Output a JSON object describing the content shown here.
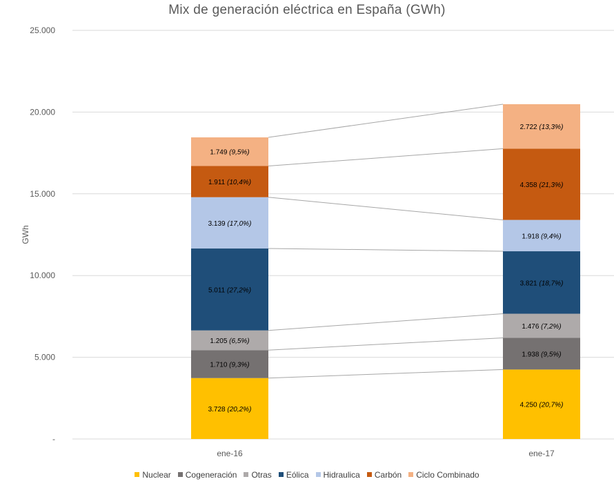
{
  "chart_data": {
    "type": "bar",
    "stacked": true,
    "title": "Mix de generación eléctrica en España (GWh)",
    "xlabel": "",
    "ylabel": "GWh",
    "ylim": [
      0,
      25000
    ],
    "yticks": [
      {
        "value": 0,
        "label": "-"
      },
      {
        "value": 5000,
        "label": "5.000"
      },
      {
        "value": 10000,
        "label": "10.000"
      },
      {
        "value": 15000,
        "label": "15.000"
      },
      {
        "value": 20000,
        "label": "20.000"
      },
      {
        "value": 25000,
        "label": "25.000"
      }
    ],
    "grid": true,
    "legend_position": "bottom",
    "categories": [
      "ene-16",
      "ene-17"
    ],
    "series": [
      {
        "name": "Nuclear",
        "color": "#FFC000",
        "text_color": "#000000",
        "values": [
          3728,
          4250
        ],
        "labels": [
          [
            "3.728",
            "(20,2%)"
          ],
          [
            "4.250",
            "(20,7%)"
          ]
        ]
      },
      {
        "name": "Cogeneración",
        "color": "#757171",
        "text_color": "#000000",
        "values": [
          1710,
          1938
        ],
        "labels": [
          [
            "1.710",
            "(9,3%)"
          ],
          [
            "1.938",
            "(9,5%)"
          ]
        ]
      },
      {
        "name": "Otras",
        "color": "#AEAAAA",
        "text_color": "#000000",
        "values": [
          1205,
          1476
        ],
        "labels": [
          [
            "1.205",
            "(6,5%)"
          ],
          [
            "1.476",
            "(7,2%)"
          ]
        ]
      },
      {
        "name": "Eólica",
        "color": "#1F4E79",
        "text_color": "#ffffff",
        "values": [
          5011,
          3821
        ],
        "labels": [
          [
            "5.011",
            "(27,2%)"
          ],
          [
            "3.821",
            "(18,7%)"
          ]
        ]
      },
      {
        "name": "Hidraulica",
        "color": "#B4C7E7",
        "text_color": "#000000",
        "values": [
          3139,
          1918
        ],
        "labels": [
          [
            "3.139",
            "(17,0%)"
          ],
          [
            "1.918",
            "(9,4%)"
          ]
        ]
      },
      {
        "name": "Carbón",
        "color": "#C55A11",
        "text_color": "#000000",
        "values": [
          1911,
          4358
        ],
        "labels": [
          [
            "1.911",
            "(10,4%)"
          ],
          [
            "4.358",
            "(21,3%)"
          ]
        ]
      },
      {
        "name": "Ciclo Combinado",
        "color": "#F4B183",
        "text_color": "#000000",
        "values": [
          1749,
          2722
        ],
        "labels": [
          [
            "1.749",
            "(9,5%)"
          ],
          [
            "2.722",
            "(13,3%)"
          ]
        ]
      }
    ]
  }
}
